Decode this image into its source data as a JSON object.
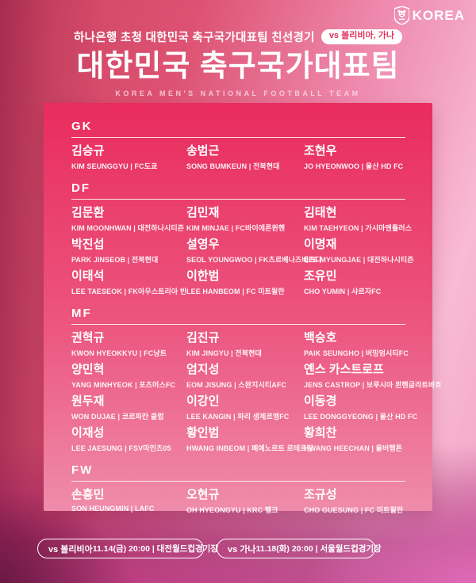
{
  "logo": {
    "text": "KOREA"
  },
  "header": {
    "line1": "하나은행 초청 대한민국 축구국가대표팀 친선경기",
    "badge": "vs 볼리비아, 가나",
    "title": "대한민국 축구국가대표팀",
    "subtitle": "KOREA MEN'S NATIONAL FOOTBALL TEAM"
  },
  "roster": {
    "sections": [
      {
        "label": "GK",
        "players": [
          {
            "name": "김승규",
            "info": "KIM SEUNGGYU | FC도쿄"
          },
          {
            "name": "송범근",
            "info": "SONG BUMKEUN | 전북현대"
          },
          {
            "name": "조현우",
            "info": "JO HYEONWOO | 울산 HD FC"
          }
        ]
      },
      {
        "label": "DF",
        "players": [
          {
            "name": "김문환",
            "info": "KIM MOONHWAN | 대전하나시티즌"
          },
          {
            "name": "김민재",
            "info": "KIM MINJAE | FC바이에른뮌헨"
          },
          {
            "name": "김태현",
            "info": "KIM TAEHYEON | 가시마앤틀러스"
          },
          {
            "name": "박진섭",
            "info": "PARK JINSEOB | 전북현대"
          },
          {
            "name": "설영우",
            "info": "SEOL YOUNGWOO | FK츠르베나즈베즈다"
          },
          {
            "name": "이명재",
            "info": "LEE MYUNGJAE | 대전하나시티즌"
          },
          {
            "name": "이태석",
            "info": "LEE TAESEOK | FK아우스트리아 빈"
          },
          {
            "name": "이한범",
            "info": "LEE HANBEOM | FC 미트윌란"
          },
          {
            "name": "조유민",
            "info": "CHO YUMIN | 샤르자FC"
          }
        ]
      },
      {
        "label": "MF",
        "players": [
          {
            "name": "권혁규",
            "info": "KWON HYEOKKYU | FC낭트"
          },
          {
            "name": "김진규",
            "info": "KIM JINGYU | 전북현대"
          },
          {
            "name": "백승호",
            "info": "PAIK SEUNGHO | 버밍엄시티FC"
          },
          {
            "name": "양민혁",
            "info": "YANG MINHYEOK | 포츠머스FC"
          },
          {
            "name": "엄지성",
            "info": "EOM JISUNG | 스완지시티AFC"
          },
          {
            "name": "옌스 카스트로프",
            "info": "JENS CASTROP | 보루시아 묀헨글라트바흐"
          },
          {
            "name": "원두재",
            "info": "WON DUJAE | 코르파칸 클럽"
          },
          {
            "name": "이강인",
            "info": "LEE KANGIN | 파리 생제르맹FC"
          },
          {
            "name": "이동경",
            "info": "LEE DONGGYEONG | 울산 HD FC"
          },
          {
            "name": "이재성",
            "info": "LEE JAESUNG | FSV마인츠05"
          },
          {
            "name": "황인범",
            "info": "HWANG INBEOM | 페예노르트 로테르담"
          },
          {
            "name": "황희찬",
            "info": "HWANG HEECHAN | 울버햄튼"
          }
        ]
      },
      {
        "label": "FW",
        "players": [
          {
            "name": "손흥민",
            "info": "SON HEUNGMIN | LAFC"
          },
          {
            "name": "오현규",
            "info": "OH HYEONGYU | KRC 헹크"
          },
          {
            "name": "조규성",
            "info": "CHO GUESUNG | FC 미트윌란"
          }
        ]
      }
    ]
  },
  "matches": [
    {
      "opponent": "vs 볼리비아",
      "detail": "11.14(금) 20:00 | 대전월드컵경기장"
    },
    {
      "opponent": "vs 가나",
      "detail": "11.18(화) 20:00 | 서울월드컵경기장"
    }
  ],
  "colors": {
    "accent": "#e2335f",
    "card_top": "#e92c5d",
    "card_bottom": "#ef8cab",
    "bg_right": "#f8bad4",
    "bg_bottom_magenta": "#d45ca8"
  }
}
